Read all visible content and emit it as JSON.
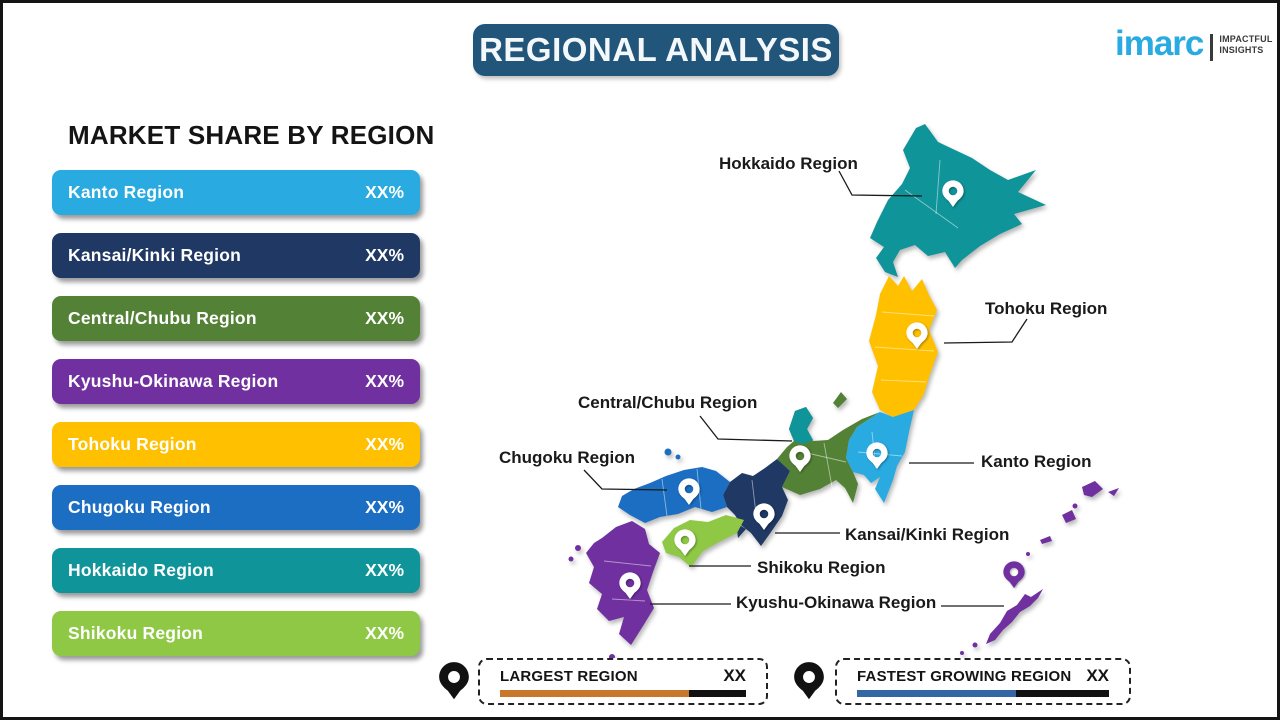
{
  "header": {
    "title": "REGIONAL ANALYSIS"
  },
  "logo": {
    "brand": "imarc",
    "tagline_line1": "IMPACTFUL",
    "tagline_line2": "INSIGHTS"
  },
  "share_panel": {
    "title": "MARKET SHARE BY REGION",
    "items": [
      {
        "label": "Kanto Region",
        "value": "XX%",
        "color": "#29ABE2"
      },
      {
        "label": "Kansai/Kinki Region",
        "value": "XX%",
        "color": "#1F3864"
      },
      {
        "label": "Central/Chubu Region",
        "value": "XX%",
        "color": "#538135"
      },
      {
        "label": "Kyushu-Okinawa Region",
        "value": "XX%",
        "color": "#7030A0"
      },
      {
        "label": "Tohoku Region",
        "value": "XX%",
        "color": "#FFC000"
      },
      {
        "label": "Chugoku Region",
        "value": "XX%",
        "color": "#1B6EC2"
      },
      {
        "label": "Hokkaido Region",
        "value": "XX%",
        "color": "#0F949A"
      },
      {
        "label": "Shikoku Region",
        "value": "XX%",
        "color": "#8FC845"
      }
    ]
  },
  "map": {
    "region_colors": {
      "hokkaido": "#0F949A",
      "tohoku": "#FFC000",
      "kanto": "#29ABE2",
      "chubu": "#538135",
      "kansai": "#1F3864",
      "chugoku": "#1B6EC2",
      "shikoku": "#8FC845",
      "kyushu_okinawa": "#7030A0",
      "noto_patch": "#0F949A",
      "pin_white": "#FFFFFF"
    },
    "labels": [
      {
        "id": "hokkaido",
        "text": "Hokkaido Region"
      },
      {
        "id": "tohoku",
        "text": "Tohoku Region"
      },
      {
        "id": "chubu",
        "text": "Central/Chubu Region"
      },
      {
        "id": "chugoku",
        "text": "Chugoku Region"
      },
      {
        "id": "kanto",
        "text": "Kanto Region"
      },
      {
        "id": "kansai",
        "text": "Kansai/Kinki Region"
      },
      {
        "id": "shikoku",
        "text": "Shikoku Region"
      },
      {
        "id": "kyushu_okinawa",
        "text": "Kyushu-Okinawa Region"
      }
    ]
  },
  "legend": {
    "largest": {
      "label": "LARGEST REGION",
      "value": "XX",
      "bar_color": "#C8772B",
      "bar_rest_color": "#111111",
      "bar_fill_pct": 77
    },
    "fastest": {
      "label": "FASTEST GROWING REGION",
      "value": "XX",
      "bar_color": "#3465A4",
      "bar_rest_color": "#111111",
      "bar_fill_pct": 63
    }
  }
}
